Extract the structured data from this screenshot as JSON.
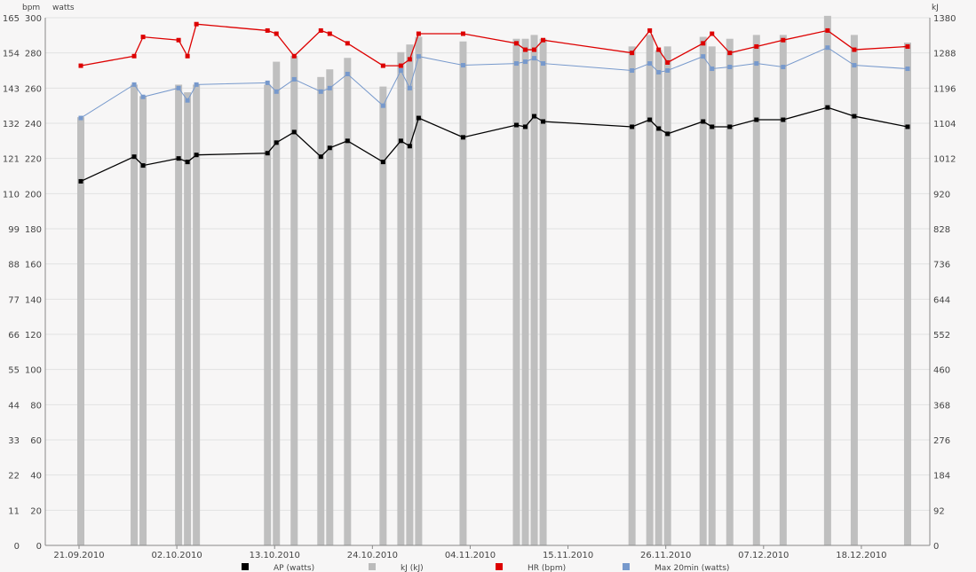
{
  "chart_data": {
    "type": "bar+line",
    "axis_units": {
      "hr": "bpm",
      "watts": "watts",
      "energy": "kJ"
    },
    "hr_ticks": [
      "0",
      "11",
      "22",
      "33",
      "44",
      "55",
      "66",
      "77",
      "88",
      "99",
      "110",
      "121",
      "132",
      "143",
      "154",
      "165"
    ],
    "watt_ticks": [
      "0",
      "20",
      "40",
      "60",
      "80",
      "100",
      "120",
      "140",
      "160",
      "180",
      "200",
      "220",
      "240",
      "260",
      "280",
      "300"
    ],
    "kj_ticks": [
      "0",
      "92",
      "184",
      "276",
      "368",
      "460",
      "552",
      "644",
      "736",
      "828",
      "920",
      "1012",
      "1104",
      "1196",
      "1288",
      "1380"
    ],
    "x_ticks": [
      "21.09.2010",
      "02.10.2010",
      "13.10.2010",
      "24.10.2010",
      "04.11.2010",
      "15.11.2010",
      "26.11.2010",
      "07.12.2010",
      "18.12.2010"
    ],
    "x_day_range": [
      0,
      96
    ],
    "legend": [
      {
        "key": "ap",
        "label": "AP (watts)",
        "color": "#000000"
      },
      {
        "key": "kj",
        "label": "kJ (kJ)",
        "color": "#bbbbbb"
      },
      {
        "key": "hr",
        "label": "HR (bpm)",
        "color": "#dd0000"
      },
      {
        "key": "max20",
        "label": "Max 20min (watts)",
        "color": "#7799cc"
      }
    ],
    "grid": true,
    "rides": [
      {
        "day": 0.2,
        "kj": 1120,
        "ap": 207,
        "hr": 150,
        "max20": 243
      },
      {
        "day": 6.2,
        "kj": 1205,
        "ap": 221,
        "hr": 153,
        "max20": 262
      },
      {
        "day": 7.2,
        "kj": 1175,
        "ap": 216,
        "hr": 159,
        "max20": 255
      },
      {
        "day": 11.2,
        "kj": 1205,
        "ap": 220,
        "hr": 158,
        "max20": 260
      },
      {
        "day": 12.2,
        "kj": 1185,
        "ap": 218,
        "hr": 153,
        "max20": 253
      },
      {
        "day": 13.2,
        "kj": 1205,
        "ap": 222,
        "hr": 163,
        "max20": 262
      },
      {
        "day": 21.2,
        "kj": 1205,
        "ap": 223,
        "hr": 161,
        "max20": 263
      },
      {
        "day": 22.2,
        "kj": 1265,
        "ap": 229,
        "hr": 160,
        "max20": 258
      },
      {
        "day": 24.2,
        "kj": 1280,
        "ap": 235,
        "hr": 153,
        "max20": 265
      },
      {
        "day": 27.2,
        "kj": 1225,
        "ap": 221,
        "hr": 161,
        "max20": 258
      },
      {
        "day": 28.2,
        "kj": 1245,
        "ap": 226,
        "hr": 160,
        "max20": 260
      },
      {
        "day": 30.2,
        "kj": 1275,
        "ap": 230,
        "hr": 157,
        "max20": 268
      },
      {
        "day": 34.2,
        "kj": 1200,
        "ap": 218,
        "hr": 150,
        "max20": 250
      },
      {
        "day": 36.2,
        "kj": 1290,
        "ap": 230,
        "hr": 150,
        "max20": 270
      },
      {
        "day": 37.2,
        "kj": 1310,
        "ap": 227,
        "hr": 152,
        "max20": 260
      },
      {
        "day": 38.2,
        "kj": 1330,
        "ap": 243,
        "hr": 160,
        "max20": 278
      },
      {
        "day": 43.2,
        "kj": 1318,
        "ap": 232,
        "hr": 160,
        "max20": 273
      },
      {
        "day": 49.2,
        "kj": 1325,
        "ap": 239,
        "hr": 157,
        "max20": 274
      },
      {
        "day": 50.2,
        "kj": 1325,
        "ap": 238,
        "hr": 155,
        "max20": 275
      },
      {
        "day": 51.2,
        "kj": 1335,
        "ap": 244,
        "hr": 155,
        "max20": 277
      },
      {
        "day": 52.2,
        "kj": 1325,
        "ap": 241,
        "hr": 158,
        "max20": 274
      },
      {
        "day": 62.2,
        "kj": 1305,
        "ap": 238,
        "hr": 154,
        "max20": 270
      },
      {
        "day": 64.2,
        "kj": 1335,
        "ap": 242,
        "hr": 161,
        "max20": 274
      },
      {
        "day": 65.2,
        "kj": 1295,
        "ap": 237,
        "hr": 155,
        "max20": 269
      },
      {
        "day": 66.2,
        "kj": 1305,
        "ap": 234,
        "hr": 151,
        "max20": 270
      },
      {
        "day": 70.2,
        "kj": 1330,
        "ap": 241,
        "hr": 157,
        "max20": 278
      },
      {
        "day": 71.2,
        "kj": 1305,
        "ap": 238,
        "hr": 160,
        "max20": 271
      },
      {
        "day": 73.2,
        "kj": 1325,
        "ap": 238,
        "hr": 154,
        "max20": 272
      },
      {
        "day": 76.2,
        "kj": 1335,
        "ap": 242,
        "hr": 156,
        "max20": 274
      },
      {
        "day": 79.2,
        "kj": 1335,
        "ap": 242,
        "hr": 158,
        "max20": 272
      },
      {
        "day": 84.2,
        "kj": 1385,
        "ap": 249,
        "hr": 161,
        "max20": 283
      },
      {
        "day": 87.2,
        "kj": 1335,
        "ap": 244,
        "hr": 155,
        "max20": 273
      },
      {
        "day": 93.2,
        "kj": 1315,
        "ap": 238,
        "hr": 156,
        "max20": 271
      }
    ],
    "axis_ranges": {
      "hr": [
        0,
        165
      ],
      "watts": [
        0,
        300
      ],
      "kj": [
        0,
        1380
      ]
    }
  }
}
